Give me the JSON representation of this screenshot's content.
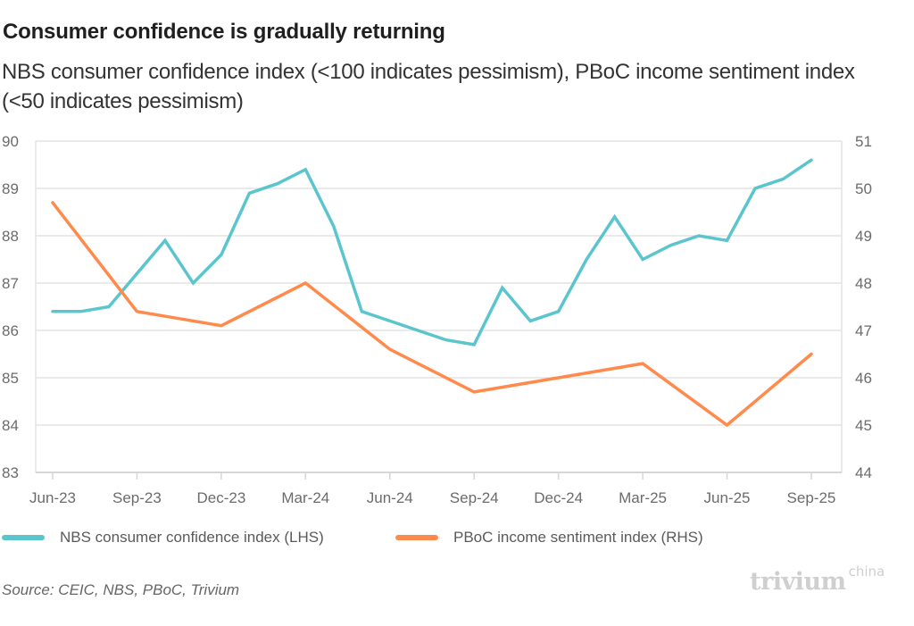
{
  "header": {
    "title": "Consumer confidence is gradually returning",
    "subtitle": "NBS consumer confidence index (<100 indicates pessimism), PBoC income sentiment index (<50 indicates pessimism)"
  },
  "footer": {
    "source": "Source: CEIC, NBS, PBoC, Trivium",
    "logo_main": "trivium",
    "logo_sup": "china"
  },
  "colors": {
    "nbs": "#5BC5CE",
    "pboc": "#FF8A4C",
    "grid": "#e3e3e3",
    "axis": "#d6d6d6"
  },
  "chart_data": {
    "type": "line",
    "title": "Consumer confidence is gradually returning",
    "subtitle": "NBS consumer confidence index (<100 indicates pessimism), PBoC income sentiment index (<50 indicates pessimism)",
    "xlabel": "",
    "ylabel_left": "",
    "ylabel_right": "",
    "x_tick_labels": [
      "Jun-23",
      "Sep-23",
      "Dec-23",
      "Mar-24",
      "Jun-24",
      "Sep-24",
      "Dec-24",
      "Mar-25",
      "Jun-25",
      "Sep-25"
    ],
    "ylim_left": [
      83,
      90
    ],
    "yticks_left": [
      83,
      84,
      85,
      86,
      87,
      88,
      89,
      90
    ],
    "ylim_right": [
      44,
      51
    ],
    "yticks_right": [
      44,
      45,
      46,
      47,
      48,
      49,
      50,
      51
    ],
    "grid": true,
    "legend_position": "bottom",
    "series": [
      {
        "name": "NBS consumer confidence index (LHS)",
        "axis": "left",
        "color": "#5BC5CE",
        "x": [
          "Jun-23",
          "Jul-23",
          "Aug-23",
          "Sep-23",
          "Oct-23",
          "Nov-23",
          "Dec-23",
          "Jan-24",
          "Feb-24",
          "Mar-24",
          "Apr-24",
          "May-24",
          "Jun-24",
          "Jul-24",
          "Aug-24",
          "Sep-24",
          "Oct-24",
          "Nov-24",
          "Dec-24",
          "Jan-25",
          "Feb-25",
          "Mar-25",
          "Apr-25",
          "May-25",
          "Jun-25",
          "Jul-25",
          "Aug-25",
          "Sep-25"
        ],
        "values": [
          86.4,
          86.4,
          86.5,
          87.2,
          87.9,
          87.0,
          87.6,
          88.9,
          89.1,
          89.4,
          88.2,
          86.4,
          86.2,
          86.0,
          85.8,
          85.7,
          86.9,
          86.2,
          86.4,
          87.5,
          88.4,
          87.5,
          87.8,
          88.0,
          87.9,
          89.0,
          89.2,
          89.6
        ]
      },
      {
        "name": "PBoC income sentiment index (RHS)",
        "axis": "right",
        "color": "#FF8A4C",
        "x": [
          "Jun-23",
          "Sep-23",
          "Dec-23",
          "Mar-24",
          "Jun-24",
          "Sep-24",
          "Dec-24",
          "Mar-25",
          "Jun-25",
          "Sep-25"
        ],
        "values": [
          49.7,
          47.4,
          47.1,
          48.0,
          46.6,
          45.7,
          46.0,
          46.3,
          45.0,
          46.5
        ]
      }
    ]
  }
}
